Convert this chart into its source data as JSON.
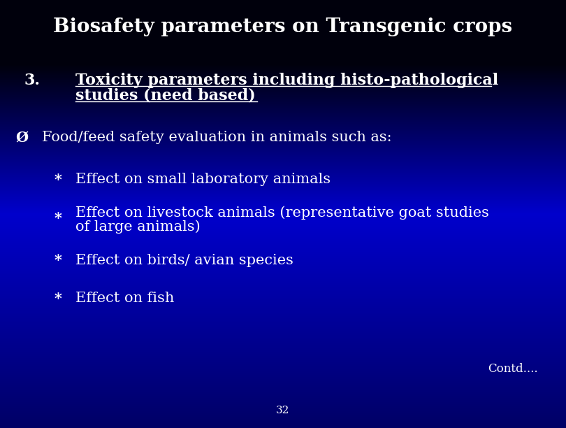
{
  "title": "Biosafety parameters on Transgenic crops",
  "bg_colors": [
    "#00001a",
    "#000080",
    "#0000cc",
    "#000099",
    "#000055"
  ],
  "text_color": "#ffffff",
  "title_fontsize": 20,
  "point3_label": "3.",
  "point3_text_line1": "Toxicity parameters including histo-pathological",
  "point3_text_line2": "studies (need based)",
  "point3_fontsize": 16,
  "arrow_symbol": "Ø",
  "arrow_text": "Food/feed safety evaluation in animals such as:",
  "arrow_fontsize": 15,
  "bullet_symbol": "*",
  "bullets": [
    "Effect on small laboratory animals",
    "Effect on livestock animals (representative goat studies",
    "of large animals)",
    "Effect on birds/ avian species",
    "Effect on fish"
  ],
  "bullet_fontsize": 15,
  "contd_text": "Contd....",
  "contd_fontsize": 12,
  "page_number": "32",
  "page_fontsize": 11
}
